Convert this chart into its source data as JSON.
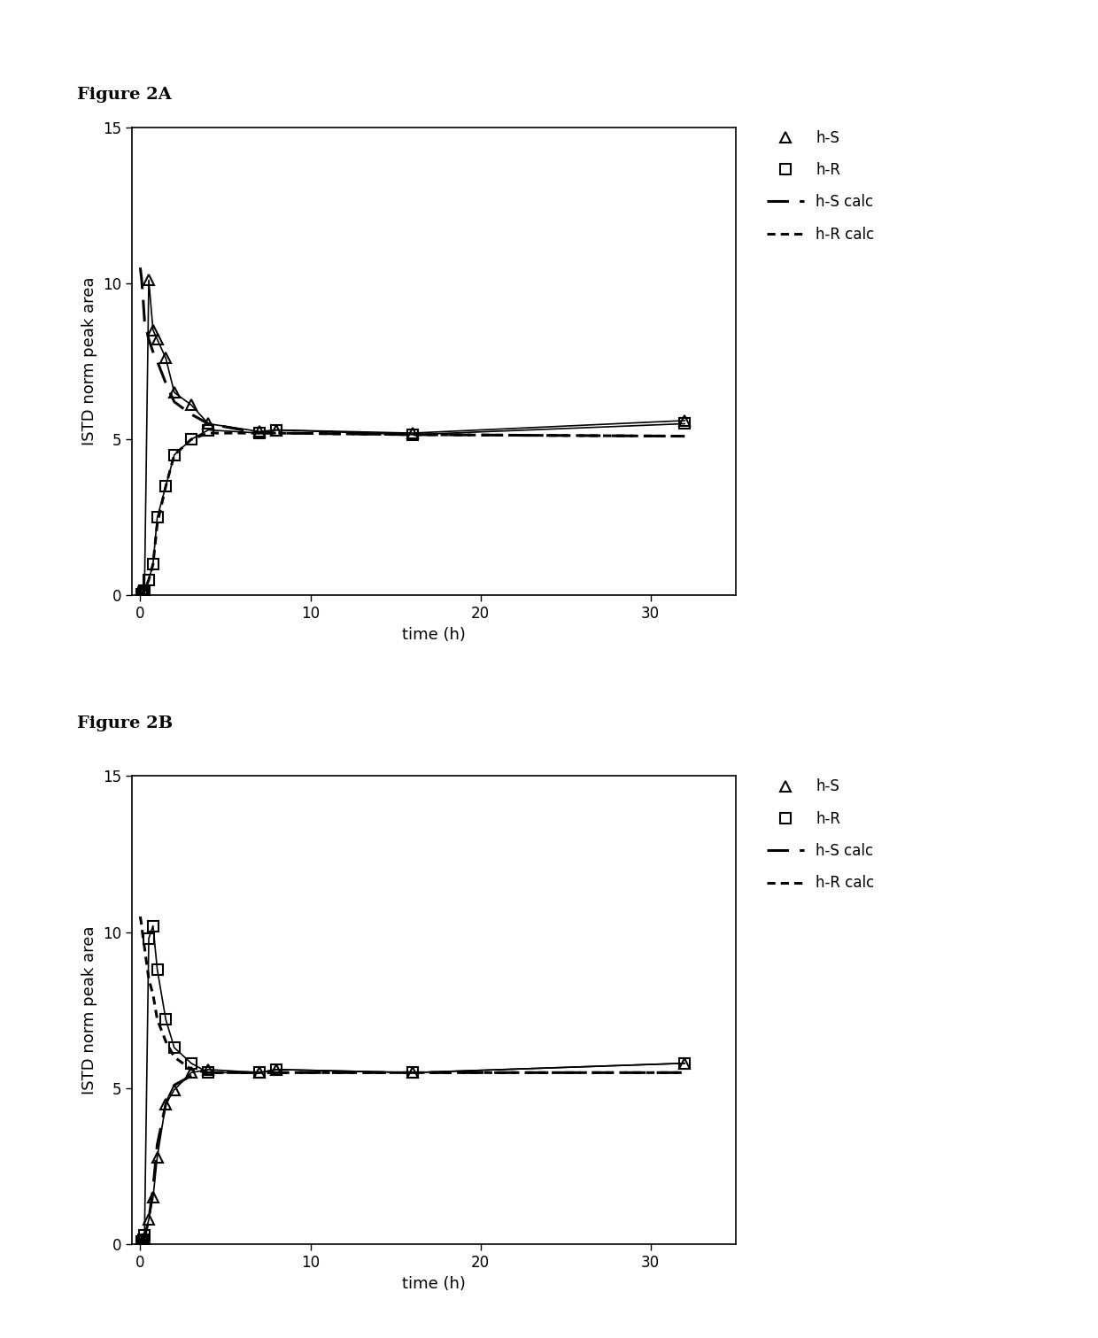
{
  "fig2A_label": "Figure 2A",
  "fig2B_label": "Figure 2B",
  "xlabel": "time (h)",
  "ylabel": "ISTD norm peak area",
  "ylim": [
    0,
    15
  ],
  "yticks": [
    0,
    5,
    10,
    15
  ],
  "xlim": [
    -0.5,
    35
  ],
  "xticks": [
    0,
    10,
    20,
    30
  ],
  "figA_hS_x": [
    0.083,
    0.167,
    0.25,
    0.5,
    0.75,
    1.0,
    1.5,
    2.0,
    3.0,
    4.0,
    7.0,
    8.0,
    16.0,
    32.0
  ],
  "figA_hS_y": [
    0.1,
    0.15,
    0.2,
    10.1,
    8.5,
    8.2,
    7.6,
    6.5,
    6.1,
    5.5,
    5.25,
    5.3,
    5.2,
    5.6
  ],
  "figA_hR_x": [
    0.083,
    0.167,
    0.25,
    0.5,
    0.75,
    1.0,
    1.5,
    2.0,
    3.0,
    4.0,
    7.0,
    8.0,
    16.0,
    32.0
  ],
  "figA_hR_y": [
    0.05,
    0.1,
    0.15,
    0.5,
    1.0,
    2.5,
    3.5,
    4.5,
    5.0,
    5.3,
    5.2,
    5.3,
    5.15,
    5.5
  ],
  "figA_hS_calc_x": [
    0.0,
    0.083,
    0.167,
    0.25,
    0.5,
    0.75,
    1.0,
    1.5,
    2.0,
    3.0,
    4.0,
    7.0,
    8.0,
    16.0,
    32.0
  ],
  "figA_hS_calc_y": [
    10.5,
    10.1,
    9.5,
    8.8,
    8.2,
    7.8,
    7.5,
    6.8,
    6.2,
    5.8,
    5.5,
    5.2,
    5.2,
    5.15,
    5.1
  ],
  "figA_hR_calc_x": [
    0.0,
    0.083,
    0.167,
    0.25,
    0.5,
    0.75,
    1.0,
    1.5,
    2.0,
    3.0,
    4.0,
    7.0,
    8.0,
    16.0,
    32.0
  ],
  "figA_hR_calc_y": [
    0.0,
    0.05,
    0.1,
    0.15,
    0.5,
    1.0,
    2.3,
    3.5,
    4.5,
    5.0,
    5.2,
    5.2,
    5.2,
    5.15,
    5.1
  ],
  "figB_hS_x": [
    0.083,
    0.167,
    0.25,
    0.5,
    0.75,
    1.0,
    1.5,
    2.0,
    3.0,
    4.0,
    7.0,
    8.0,
    16.0,
    32.0
  ],
  "figB_hS_y": [
    0.05,
    0.1,
    0.2,
    0.8,
    1.5,
    2.8,
    4.5,
    4.95,
    5.5,
    5.6,
    5.5,
    5.6,
    5.5,
    5.8
  ],
  "figB_hR_x": [
    0.083,
    0.167,
    0.25,
    0.5,
    0.75,
    1.0,
    1.5,
    2.0,
    3.0,
    4.0,
    7.0,
    8.0,
    16.0,
    32.0
  ],
  "figB_hR_y": [
    0.08,
    0.15,
    0.3,
    9.8,
    10.2,
    8.8,
    7.2,
    6.3,
    5.8,
    5.5,
    5.5,
    5.6,
    5.5,
    5.8
  ],
  "figB_hS_calc_x": [
    0.0,
    0.083,
    0.167,
    0.25,
    0.5,
    0.75,
    1.0,
    1.5,
    2.0,
    3.0,
    4.0,
    7.0,
    8.0,
    16.0,
    32.0
  ],
  "figB_hS_calc_y": [
    0.0,
    0.05,
    0.1,
    0.2,
    0.8,
    1.8,
    3.2,
    4.5,
    5.1,
    5.4,
    5.5,
    5.5,
    5.5,
    5.5,
    5.5
  ],
  "figB_hR_calc_x": [
    0.0,
    0.083,
    0.167,
    0.25,
    0.5,
    0.75,
    1.0,
    1.5,
    2.0,
    3.0,
    4.0,
    7.0,
    8.0,
    16.0,
    32.0
  ],
  "figB_hR_calc_y": [
    10.5,
    10.2,
    9.8,
    9.5,
    8.5,
    8.0,
    7.2,
    6.5,
    6.0,
    5.6,
    5.5,
    5.5,
    5.5,
    5.5,
    5.5
  ],
  "color": "#000000",
  "background": "#ffffff",
  "legend_hS": "h-S",
  "legend_hR": "h-R",
  "legend_hS_calc": "h-S calc",
  "legend_hR_calc": "h-R calc",
  "markersize": 9,
  "linewidth_data": 1.2,
  "linewidth_calc": 2.2,
  "title_fontsize": 14,
  "label_fontsize": 13,
  "tick_fontsize": 12,
  "legend_fontsize": 12
}
